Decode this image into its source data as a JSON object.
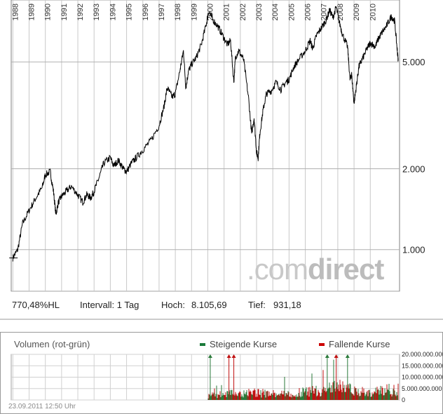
{
  "chart_data": [
    {
      "type": "line",
      "scale": "log",
      "ylim": [
        700,
        8500
      ],
      "ytick_labels": [
        {
          "value": 1000,
          "label": "1.000"
        },
        {
          "value": 2000,
          "label": "2.000"
        },
        {
          "value": 5000,
          "label": "5.000"
        }
      ],
      "year_labels": [
        "1988",
        "1989",
        "1990",
        "1991",
        "1992",
        "1993",
        "1994",
        "1995",
        "1996",
        "1997",
        "1998",
        "1999",
        "2000",
        "2001",
        "2002",
        "2003",
        "2004",
        "2005",
        "2006",
        "2007",
        "2008",
        "2009",
        "2010"
      ],
      "x": [
        1988.0,
        1988.3,
        1988.6,
        1989.0,
        1989.4,
        1989.8,
        1990.0,
        1990.3,
        1990.5,
        1990.65,
        1990.8,
        1991.0,
        1991.3,
        1991.6,
        1992.0,
        1992.3,
        1992.55,
        1992.8,
        1993.0,
        1993.3,
        1993.6,
        1994.0,
        1994.2,
        1994.5,
        1994.8,
        1995.0,
        1995.3,
        1995.6,
        1996.0,
        1996.5,
        1997.0,
        1997.3,
        1997.5,
        1997.8,
        1998.0,
        1998.3,
        1998.5,
        1998.65,
        1998.8,
        1999.0,
        1999.3,
        1999.6,
        1999.9,
        2000.05,
        2000.3,
        2000.6,
        2000.9,
        2001.2,
        2001.4,
        2001.6,
        2001.7,
        2001.9,
        2002.2,
        2002.5,
        2002.7,
        2002.85,
        2003.0,
        2003.1,
        2003.2,
        2003.4,
        2003.6,
        2003.9,
        2004.2,
        2004.5,
        2004.8,
        2005.0,
        2005.3,
        2005.6,
        2006.0,
        2006.3,
        2006.45,
        2006.7,
        2007.0,
        2007.3,
        2007.5,
        2007.7,
        2007.9,
        2008.1,
        2008.3,
        2008.6,
        2008.75,
        2008.85,
        2009.0,
        2009.15,
        2009.3,
        2009.5,
        2009.8,
        2010.0,
        2010.3,
        2010.5,
        2010.7,
        2011.0,
        2011.3,
        2011.5,
        2011.65,
        2011.72
      ],
      "values": [
        931,
        1000,
        1250,
        1400,
        1550,
        1700,
        1900,
        1950,
        1650,
        1350,
        1500,
        1580,
        1650,
        1720,
        1600,
        1500,
        1600,
        1560,
        1650,
        1850,
        2100,
        2200,
        2050,
        2150,
        2000,
        1950,
        2100,
        2200,
        2350,
        2550,
        2900,
        3400,
        4000,
        3700,
        3800,
        4700,
        5500,
        4000,
        4600,
        4900,
        5200,
        5800,
        6900,
        7700,
        7200,
        6800,
        6300,
        5800,
        6000,
        4200,
        5200,
        5500,
        5100,
        3700,
        2700,
        3100,
        2300,
        2200,
        2700,
        3300,
        3800,
        3900,
        4200,
        3950,
        4200,
        4300,
        4800,
        5100,
        5500,
        6000,
        5600,
        6300,
        6700,
        7200,
        7800,
        7300,
        8000,
        7000,
        6300,
        5700,
        4300,
        4500,
        3500,
        4100,
        4800,
        5100,
        5600,
        5900,
        5700,
        6100,
        6400,
        6800,
        7400,
        7100,
        5600,
        5050
      ],
      "stats": {
        "perf_label": "770,48%HL",
        "interval_label": "Intervall: 1 Tag",
        "high_key": "Hoch:",
        "high_value": "8.105,69",
        "low_key": "Tief:",
        "low_value": "931,18"
      },
      "watermark": {
        "part1": ".com",
        "part2": "direct"
      },
      "grid": true
    },
    {
      "type": "bar",
      "title": "Volumen (rot-grün)",
      "legend": {
        "up": "Steigende Kurse",
        "down": "Fallende Kurse",
        "up_color": "#1a7a3a",
        "down_color": "#cc0000"
      },
      "ylim": [
        0,
        20000000000
      ],
      "ytick_labels": [
        {
          "value": 20000000000,
          "label": "20.000.000.000"
        },
        {
          "value": 15000000000,
          "label": "15.000.000.000"
        },
        {
          "value": 10000000000,
          "label": "10.000.000.000"
        },
        {
          "value": 5000000000,
          "label": "5.000.000.000"
        },
        {
          "value": 0,
          "label": "0"
        }
      ],
      "x_start": 2000.0,
      "x_end": 2011.72,
      "volume_level_by_year": [
        [
          2000,
          1600000000
        ],
        [
          2001,
          2200000000
        ],
        [
          2002,
          2600000000
        ],
        [
          2003,
          2700000000
        ],
        [
          2004,
          2300000000
        ],
        [
          2005,
          2400000000
        ],
        [
          2006,
          3000000000
        ],
        [
          2007,
          3700000000
        ],
        [
          2008,
          5000000000
        ],
        [
          2009,
          3400000000
        ],
        [
          2010,
          2700000000
        ],
        [
          2011,
          3800000000
        ]
      ],
      "timestamp": "23.09.2011 12:50 Uhr",
      "colors": {
        "up": "#2a7a3a",
        "down": "#c01010"
      }
    }
  ]
}
